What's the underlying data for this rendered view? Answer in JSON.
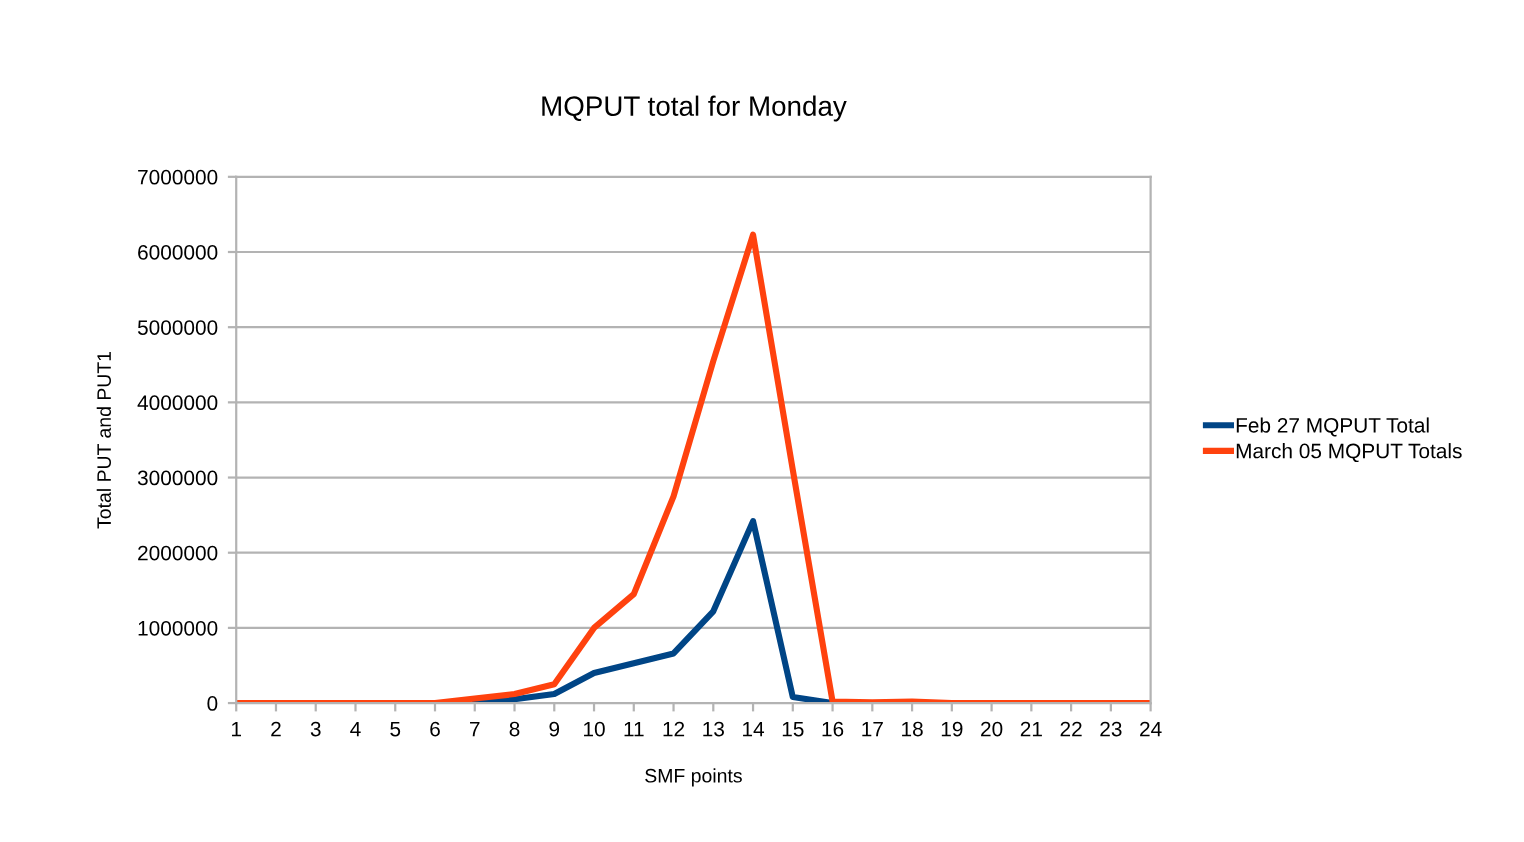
{
  "chart_data": {
    "type": "line",
    "title": "MQPUT total for Monday",
    "xlabel": "SMF points",
    "ylabel": "Total PUT and PUT1",
    "x": [
      1,
      2,
      3,
      4,
      5,
      6,
      7,
      8,
      9,
      10,
      11,
      12,
      13,
      14,
      15,
      16,
      17,
      18,
      19,
      20,
      21,
      22,
      23,
      24
    ],
    "series": [
      {
        "name": "Feb 27 MQPUT Total",
        "color": "#004586",
        "values": [
          null,
          null,
          null,
          null,
          null,
          null,
          0,
          50000,
          120000,
          400000,
          530000,
          660000,
          1220000,
          2420000,
          80000,
          0,
          null,
          null,
          null,
          null,
          null,
          null,
          null,
          null
        ]
      },
      {
        "name": "March 05 MQPUT Totals",
        "color": "#ff420e",
        "values": [
          0,
          0,
          0,
          0,
          0,
          0,
          60000,
          120000,
          250000,
          1000000,
          1450000,
          2750000,
          4550000,
          6230000,
          3100000,
          20000,
          10000,
          20000,
          0,
          0,
          0,
          0,
          0,
          0
        ]
      }
    ],
    "xlim": [
      1,
      24
    ],
    "xticks": [
      1,
      2,
      3,
      4,
      5,
      6,
      7,
      8,
      9,
      10,
      11,
      12,
      13,
      14,
      15,
      16,
      17,
      18,
      19,
      20,
      21,
      22,
      23,
      24
    ],
    "ylim": [
      0,
      7000000
    ],
    "yticks": [
      0,
      1000000,
      2000000,
      3000000,
      4000000,
      5000000,
      6000000,
      7000000
    ],
    "grid": "y",
    "legend": "right",
    "marker": "none",
    "line_style": "solid"
  }
}
